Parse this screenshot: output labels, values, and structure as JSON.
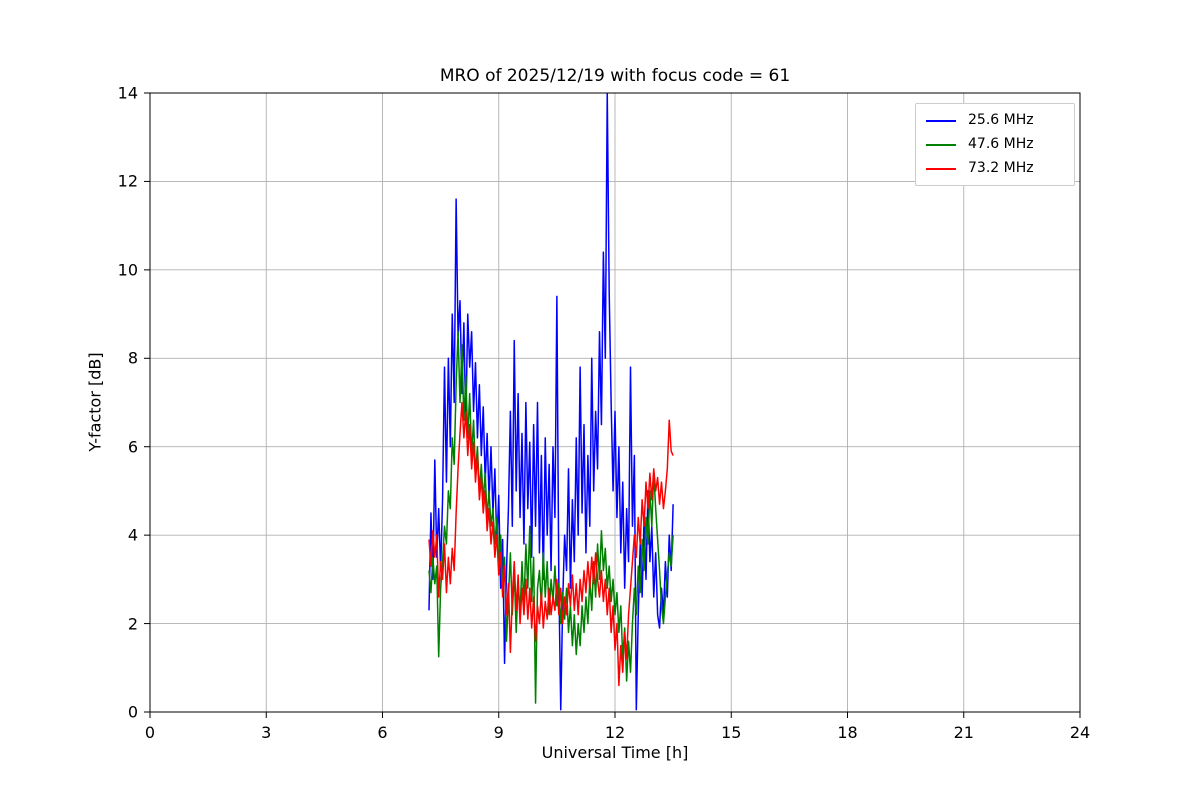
{
  "chart_data": {
    "type": "line",
    "title": "MRO of 2025/12/19 with focus code = 61",
    "xlabel": "Universal Time [h]",
    "ylabel": "Y-factor [dB]",
    "xlim": [
      0,
      24
    ],
    "ylim": [
      0,
      14
    ],
    "xticks": [
      0,
      3,
      6,
      9,
      12,
      15,
      18,
      21,
      24
    ],
    "yticks": [
      0,
      2,
      4,
      6,
      8,
      10,
      12,
      14
    ],
    "grid": true,
    "legend_position": "upper right",
    "x_start": 7.2,
    "x_step": 0.05,
    "series": [
      {
        "name": "25.6 MHz",
        "color": "#0000ff",
        "values": [
          2.3,
          4.5,
          3.0,
          5.7,
          3.5,
          4.6,
          3.2,
          4.8,
          7.8,
          5.2,
          8.0,
          6.0,
          9.0,
          7.0,
          11.6,
          8.5,
          9.3,
          7.2,
          8.8,
          6.5,
          9.0,
          7.8,
          8.6,
          6.8,
          7.9,
          6.2,
          7.4,
          5.8,
          6.9,
          5.2,
          6.3,
          4.8,
          6.0,
          4.5,
          5.5,
          3.8,
          4.9,
          2.8,
          3.9,
          1.1,
          3.2,
          4.6,
          6.8,
          4.2,
          8.4,
          5.0,
          7.2,
          4.4,
          6.3,
          3.8,
          7.0,
          4.6,
          6.1,
          3.5,
          6.5,
          4.2,
          7.0,
          3.6,
          5.8,
          3.0,
          6.2,
          4.0,
          5.6,
          3.2,
          6.0,
          4.4,
          9.4,
          3.0,
          0.05,
          2.5,
          4.0,
          3.2,
          5.5,
          2.8,
          4.8,
          3.4,
          6.2,
          4.0,
          7.8,
          4.5,
          6.5,
          3.6,
          5.8,
          4.2,
          8.0,
          5.0,
          6.8,
          5.5,
          8.6,
          6.5,
          10.4,
          8.0,
          14.0,
          9.5,
          7.0,
          5.0,
          6.8,
          4.4,
          6.0,
          3.6,
          5.2,
          2.8,
          4.6,
          3.4,
          7.8,
          4.2,
          5.8,
          0.05,
          2.2,
          3.8,
          2.6,
          4.4,
          3.0,
          5.0,
          3.4,
          4.2,
          2.6,
          3.6,
          2.2,
          1.9,
          2.8,
          2.2,
          3.4,
          2.6,
          4.0,
          3.2,
          4.7
        ]
      },
      {
        "name": "47.6 MHz",
        "color": "#008000",
        "values": [
          3.2,
          2.7,
          3.5,
          2.9,
          3.3,
          1.25,
          2.8,
          3.4,
          4.2,
          3.8,
          5.0,
          4.6,
          6.2,
          5.6,
          7.4,
          8.6,
          7.0,
          8.3,
          6.6,
          7.6,
          6.2,
          7.2,
          5.8,
          6.6,
          5.4,
          6.0,
          5.0,
          5.6,
          4.8,
          5.4,
          4.4,
          5.0,
          4.2,
          4.6,
          3.8,
          4.4,
          3.4,
          4.0,
          2.8,
          3.5,
          1.6,
          2.6,
          3.6,
          2.2,
          3.2,
          1.8,
          2.9,
          2.2,
          3.4,
          2.4,
          3.8,
          2.8,
          4.2,
          2.5,
          3.5,
          0.2,
          2.8,
          3.2,
          2.4,
          3.6,
          2.6,
          3.4,
          2.2,
          3.0,
          2.5,
          3.3,
          2.4,
          2.9,
          2.0,
          2.7,
          2.1,
          2.8,
          1.8,
          2.4,
          1.5,
          2.2,
          1.3,
          2.0,
          1.5,
          2.4,
          1.8,
          2.6,
          2.0,
          3.0,
          2.3,
          3.4,
          2.6,
          3.8,
          3.0,
          4.1,
          3.2,
          3.7,
          2.8,
          3.3,
          2.5,
          3.0,
          2.2,
          2.7,
          1.8,
          2.4,
          1.2,
          1.9,
          0.7,
          1.6,
          0.9,
          2.0,
          2.8,
          2.2,
          3.3,
          2.7,
          3.9,
          3.2,
          4.4,
          3.8,
          5.0,
          4.2,
          5.4,
          4.6,
          3.9,
          3.2,
          2.4,
          2.0,
          2.6,
          3.1,
          3.6,
          3.3,
          4.0
        ]
      },
      {
        "name": "73.2 MHz",
        "color": "#ff0000",
        "values": [
          3.9,
          3.3,
          4.1,
          3.5,
          4.0,
          2.6,
          3.4,
          3.0,
          3.8,
          2.7,
          3.5,
          2.9,
          3.7,
          3.2,
          4.5,
          5.5,
          6.3,
          7.0,
          6.2,
          6.8,
          5.8,
          6.5,
          5.5,
          6.1,
          5.2,
          5.8,
          4.8,
          5.3,
          4.5,
          5.0,
          4.1,
          4.6,
          3.8,
          4.3,
          3.5,
          4.0,
          3.1,
          3.6,
          2.6,
          3.3,
          2.2,
          2.9,
          1.35,
          2.6,
          3.4,
          2.3,
          3.1,
          2.0,
          2.8,
          2.2,
          3.0,
          2.1,
          2.8,
          1.9,
          2.6,
          1.6,
          2.4,
          2.0,
          2.7,
          1.9,
          2.5,
          2.1,
          2.8,
          2.2,
          2.6,
          2.3,
          3.0,
          2.2,
          2.8,
          2.0,
          2.6,
          2.2,
          2.9,
          2.4,
          3.1,
          2.3,
          2.9,
          2.2,
          3.0,
          2.5,
          3.2,
          2.7,
          3.4,
          2.8,
          3.5,
          2.9,
          3.6,
          3.0,
          2.6,
          3.2,
          2.5,
          3.0,
          2.2,
          2.8,
          1.8,
          2.4,
          1.4,
          2.0,
          0.6,
          1.5,
          0.9,
          1.8,
          1.2,
          2.2,
          2.8,
          3.4,
          4.0,
          3.5,
          4.4,
          3.8,
          4.8,
          4.2,
          5.2,
          4.6,
          5.4,
          4.8,
          5.5,
          5.0,
          5.3,
          4.7,
          5.2,
          4.6,
          5.0,
          5.5,
          6.6,
          5.9,
          5.8
        ]
      }
    ]
  }
}
